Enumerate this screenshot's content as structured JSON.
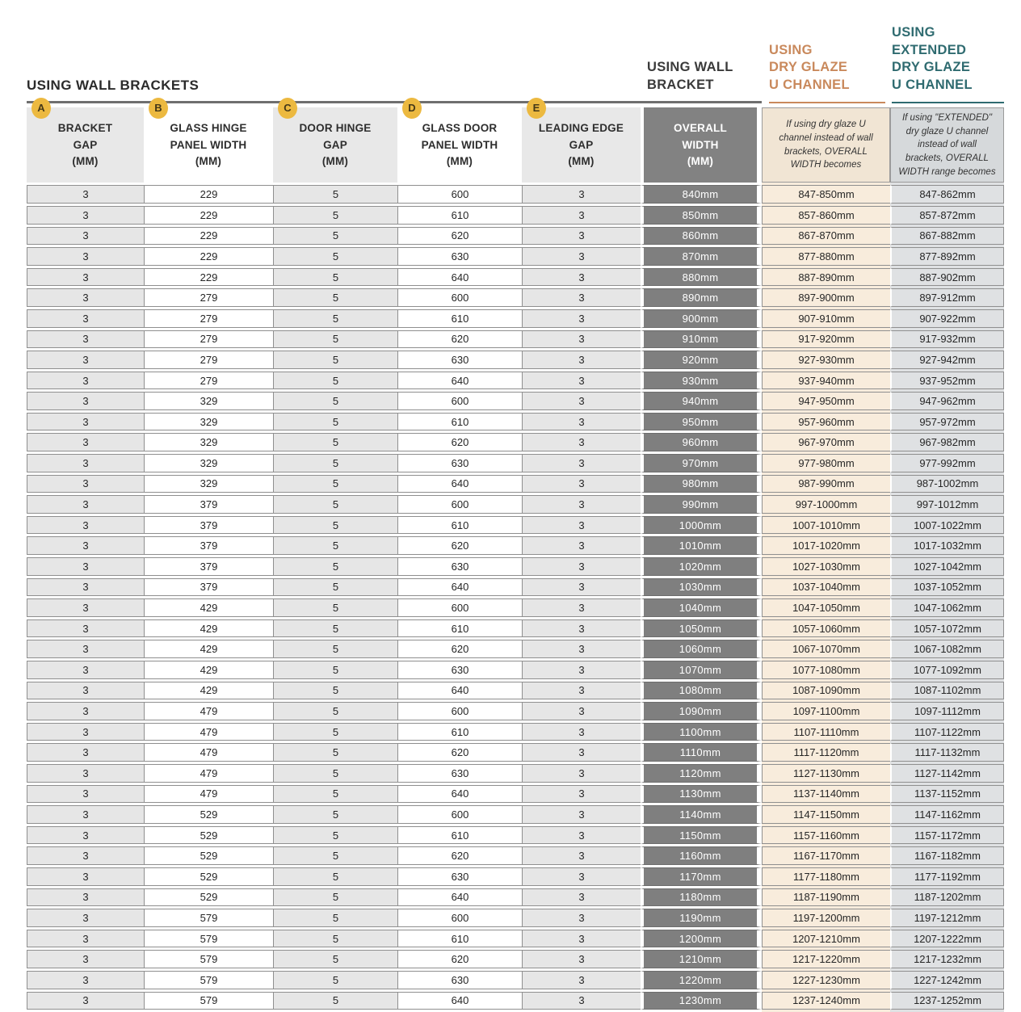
{
  "header": {
    "left_title": "USING WALL BRACKETS",
    "wall_bracket_title": "USING WALL\nBRACKET",
    "dry_glaze_title": "USING\nDRY GLAZE\nU CHANNEL",
    "extended_title": "USING\nEXTENDED\nDRY GLAZE\nU CHANNEL"
  },
  "colors": {
    "orange_accent": "#c9895c",
    "teal_accent": "#2f6b70",
    "badge_yellow": "#ecb940",
    "dark_column": "#7f7f7f",
    "cream_column": "#f8ecdc",
    "bluegray_column": "#dfe1e3",
    "light_cell": "#e6e6e6"
  },
  "table": {
    "columns": [
      {
        "id": "bracket-gap",
        "badge": "A",
        "label": "BRACKET\nGAP\n(MM)"
      },
      {
        "id": "glass-hinge-panel-width",
        "badge": "B",
        "label": "GLASS HINGE\nPANEL WIDTH\n(MM)"
      },
      {
        "id": "door-hinge-gap",
        "badge": "C",
        "label": "DOOR HINGE\nGAP\n(MM)"
      },
      {
        "id": "glass-door-panel-width",
        "badge": "D",
        "label": "GLASS DOOR\nPANEL WIDTH\n(MM)"
      },
      {
        "id": "leading-edge-gap",
        "badge": "E",
        "label": "LEADING EDGE\nGAP\n(MM)"
      },
      {
        "id": "overall-width",
        "label": "OVERALL\nWIDTH\n(MM)"
      },
      {
        "id": "dry-glaze-width",
        "label": "If using dry glaze U channel instead of wall brackets, OVERALL WIDTH becomes"
      },
      {
        "id": "extended-dry-glaze-width",
        "label": "If using \"EXTENDED\" dry glaze U channel instead of wall brackets, OVERALL WIDTH range becomes"
      }
    ],
    "rows": [
      [
        3,
        229,
        5,
        600,
        3,
        "840mm",
        "847-850mm",
        "847-862mm"
      ],
      [
        3,
        229,
        5,
        610,
        3,
        "850mm",
        "857-860mm",
        "857-872mm"
      ],
      [
        3,
        229,
        5,
        620,
        3,
        "860mm",
        "867-870mm",
        "867-882mm"
      ],
      [
        3,
        229,
        5,
        630,
        3,
        "870mm",
        "877-880mm",
        "877-892mm"
      ],
      [
        3,
        229,
        5,
        640,
        3,
        "880mm",
        "887-890mm",
        "887-902mm"
      ],
      [
        3,
        279,
        5,
        600,
        3,
        "890mm",
        "897-900mm",
        "897-912mm"
      ],
      [
        3,
        279,
        5,
        610,
        3,
        "900mm",
        "907-910mm",
        "907-922mm"
      ],
      [
        3,
        279,
        5,
        620,
        3,
        "910mm",
        "917-920mm",
        "917-932mm"
      ],
      [
        3,
        279,
        5,
        630,
        3,
        "920mm",
        "927-930mm",
        "927-942mm"
      ],
      [
        3,
        279,
        5,
        640,
        3,
        "930mm",
        "937-940mm",
        "937-952mm"
      ],
      [
        3,
        329,
        5,
        600,
        3,
        "940mm",
        "947-950mm",
        "947-962mm"
      ],
      [
        3,
        329,
        5,
        610,
        3,
        "950mm",
        "957-960mm",
        "957-972mm"
      ],
      [
        3,
        329,
        5,
        620,
        3,
        "960mm",
        "967-970mm",
        "967-982mm"
      ],
      [
        3,
        329,
        5,
        630,
        3,
        "970mm",
        "977-980mm",
        "977-992mm"
      ],
      [
        3,
        329,
        5,
        640,
        3,
        "980mm",
        "987-990mm",
        "987-1002mm"
      ],
      [
        3,
        379,
        5,
        600,
        3,
        "990mm",
        "997-1000mm",
        "997-1012mm"
      ],
      [
        3,
        379,
        5,
        610,
        3,
        "1000mm",
        "1007-1010mm",
        "1007-1022mm"
      ],
      [
        3,
        379,
        5,
        620,
        3,
        "1010mm",
        "1017-1020mm",
        "1017-1032mm"
      ],
      [
        3,
        379,
        5,
        630,
        3,
        "1020mm",
        "1027-1030mm",
        "1027-1042mm"
      ],
      [
        3,
        379,
        5,
        640,
        3,
        "1030mm",
        "1037-1040mm",
        "1037-1052mm"
      ],
      [
        3,
        429,
        5,
        600,
        3,
        "1040mm",
        "1047-1050mm",
        "1047-1062mm"
      ],
      [
        3,
        429,
        5,
        610,
        3,
        "1050mm",
        "1057-1060mm",
        "1057-1072mm"
      ],
      [
        3,
        429,
        5,
        620,
        3,
        "1060mm",
        "1067-1070mm",
        "1067-1082mm"
      ],
      [
        3,
        429,
        5,
        630,
        3,
        "1070mm",
        "1077-1080mm",
        "1077-1092mm"
      ],
      [
        3,
        429,
        5,
        640,
        3,
        "1080mm",
        "1087-1090mm",
        "1087-1102mm"
      ],
      [
        3,
        479,
        5,
        600,
        3,
        "1090mm",
        "1097-1100mm",
        "1097-1112mm"
      ],
      [
        3,
        479,
        5,
        610,
        3,
        "1100mm",
        "1107-1110mm",
        "1107-1122mm"
      ],
      [
        3,
        479,
        5,
        620,
        3,
        "1110mm",
        "1117-1120mm",
        "1117-1132mm"
      ],
      [
        3,
        479,
        5,
        630,
        3,
        "1120mm",
        "1127-1130mm",
        "1127-1142mm"
      ],
      [
        3,
        479,
        5,
        640,
        3,
        "1130mm",
        "1137-1140mm",
        "1137-1152mm"
      ],
      [
        3,
        529,
        5,
        600,
        3,
        "1140mm",
        "1147-1150mm",
        "1147-1162mm"
      ],
      [
        3,
        529,
        5,
        610,
        3,
        "1150mm",
        "1157-1160mm",
        "1157-1172mm"
      ],
      [
        3,
        529,
        5,
        620,
        3,
        "1160mm",
        "1167-1170mm",
        "1167-1182mm"
      ],
      [
        3,
        529,
        5,
        630,
        3,
        "1170mm",
        "1177-1180mm",
        "1177-1192mm"
      ],
      [
        3,
        529,
        5,
        640,
        3,
        "1180mm",
        "1187-1190mm",
        "1187-1202mm"
      ],
      [
        3,
        579,
        5,
        600,
        3,
        "1190mm",
        "1197-1200mm",
        "1197-1212mm"
      ],
      [
        3,
        579,
        5,
        610,
        3,
        "1200mm",
        "1207-1210mm",
        "1207-1222mm"
      ],
      [
        3,
        579,
        5,
        620,
        3,
        "1210mm",
        "1217-1220mm",
        "1217-1232mm"
      ],
      [
        3,
        579,
        5,
        630,
        3,
        "1220mm",
        "1227-1230mm",
        "1227-1242mm"
      ],
      [
        3,
        579,
        5,
        640,
        3,
        "1230mm",
        "1237-1240mm",
        "1237-1252mm"
      ]
    ]
  }
}
